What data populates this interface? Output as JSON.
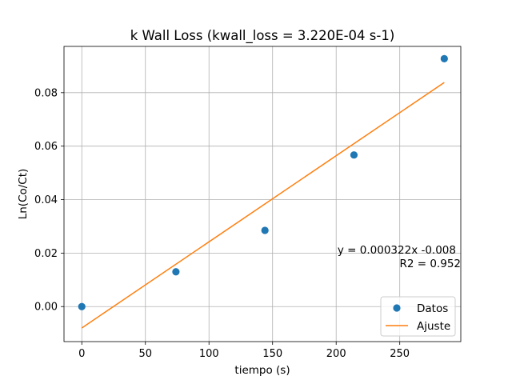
{
  "chart_data": {
    "type": "scatter",
    "title": "k Wall Loss (kwall_loss = 3.220E-04 s-1)",
    "xlabel": "tiempo (s)",
    "ylabel": "Ln(Co/Ct)",
    "xlim": [
      -14,
      298
    ],
    "ylim": [
      -0.0131,
      0.0973
    ],
    "xticks": [
      0,
      50,
      100,
      150,
      200,
      250
    ],
    "yticks": [
      0.0,
      0.02,
      0.04,
      0.06,
      0.08
    ],
    "xtick_labels": [
      "0",
      "50",
      "100",
      "150",
      "200",
      "250"
    ],
    "ytick_labels": [
      "0.00",
      "0.02",
      "0.04",
      "0.06",
      "0.08"
    ],
    "grid": true,
    "series": [
      {
        "name": "Datos",
        "kind": "scatter",
        "color": "#1f77b4",
        "x": [
          0,
          74,
          144,
          214,
          285
        ],
        "y": [
          0.0,
          0.013,
          0.0285,
          0.0567,
          0.0927
        ]
      },
      {
        "name": "Ajuste",
        "kind": "line",
        "color": "#ff7f0e",
        "x": [
          0,
          285
        ],
        "y": [
          -0.008,
          0.0838
        ]
      }
    ],
    "annotations": [
      "y = 0.000322x -0.008",
      "R2 = 0.952"
    ],
    "legend": {
      "placement": "lower-right",
      "entries": [
        "Datos",
        "Ajuste"
      ]
    }
  }
}
